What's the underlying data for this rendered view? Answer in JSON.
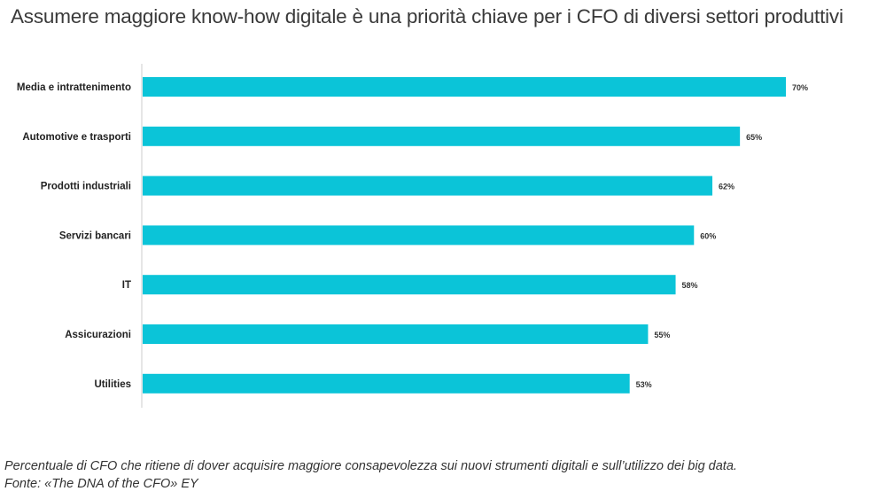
{
  "title": "Assumere maggiore know-how digitale è una priorità chiave per i CFO di diversi settori produttivi",
  "footnote": {
    "line1": "Percentuale di CFO che ritiene di dover acquisire maggiore consapevolezza sui nuovi strumenti digitali e sull’utilizzo dei big data.",
    "line2": "Fonte: «The DNA of the CFO» EY"
  },
  "colors": {
    "bar": "#0bc4d8",
    "axis": "#cccccc",
    "label": "#222222",
    "value": "#333333"
  },
  "chart_data": {
    "type": "bar",
    "orientation": "horizontal",
    "categories": [
      "Media e intrattenimento",
      "Automotive e trasporti",
      "Prodotti industriali",
      "Servizi bancari",
      "IT",
      "Assicurazioni",
      "Utilities"
    ],
    "values": [
      70,
      65,
      62,
      60,
      58,
      55,
      53
    ],
    "value_labels": [
      "70%",
      "65%",
      "62%",
      "60%",
      "58%",
      "55%",
      "53%"
    ],
    "xlim": [
      0,
      70
    ],
    "unit": "%",
    "grid": false,
    "legend": "none"
  }
}
